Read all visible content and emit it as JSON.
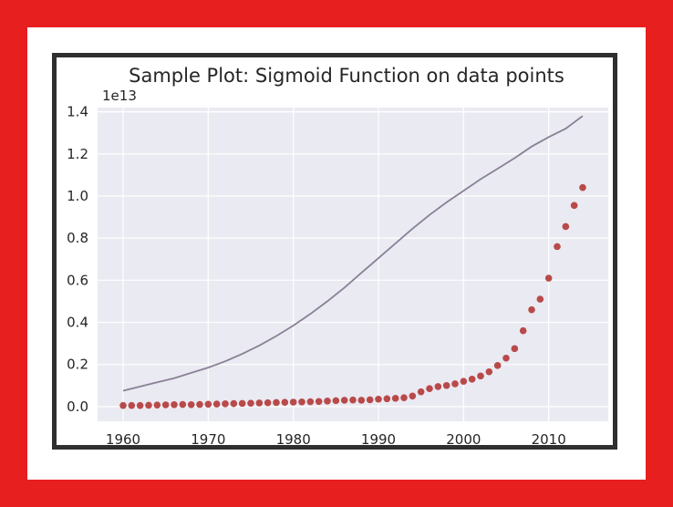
{
  "chart_data": {
    "type": "scatter",
    "title": "Sample Plot: Sigmoid Function on data points",
    "xlabel": "",
    "ylabel": "",
    "y_offset_label": "1e13",
    "xlim": [
      1957,
      2017
    ],
    "ylim": [
      -0.07,
      1.42
    ],
    "grid": true,
    "xticks": [
      1960,
      1970,
      1980,
      1990,
      2000,
      2010
    ],
    "xtick_labels": [
      "1960",
      "1970",
      "1980",
      "1990",
      "2000",
      "2010"
    ],
    "yticks": [
      0.0,
      0.2,
      0.4,
      0.6,
      0.8,
      1.0,
      1.2,
      1.4
    ],
    "ytick_labels": [
      "0.0",
      "0.2",
      "0.4",
      "0.6",
      "0.8",
      "1.0",
      "1.2",
      "1.4"
    ],
    "colors": {
      "points": "#b94a4a",
      "curve": "#8a8096",
      "plot_bg": "#eaeaf2",
      "grid": "#ffffff"
    },
    "series": [
      {
        "type": "scatter",
        "x": [
          1960,
          1961,
          1962,
          1963,
          1964,
          1965,
          1966,
          1967,
          1968,
          1969,
          1970,
          1971,
          1972,
          1973,
          1974,
          1975,
          1976,
          1977,
          1978,
          1979,
          1980,
          1981,
          1982,
          1983,
          1984,
          1985,
          1986,
          1987,
          1988,
          1989,
          1990,
          1991,
          1992,
          1993,
          1994,
          1995,
          1996,
          1997,
          1998,
          1999,
          2000,
          2001,
          2002,
          2003,
          2004,
          2005,
          2006,
          2007,
          2008,
          2009,
          2010,
          2011,
          2012,
          2013,
          2014
        ],
        "y": [
          0.005,
          0.005,
          0.005,
          0.006,
          0.007,
          0.008,
          0.009,
          0.01,
          0.009,
          0.01,
          0.011,
          0.012,
          0.013,
          0.014,
          0.015,
          0.016,
          0.017,
          0.018,
          0.019,
          0.02,
          0.021,
          0.022,
          0.023,
          0.024,
          0.026,
          0.028,
          0.03,
          0.031,
          0.03,
          0.032,
          0.035,
          0.037,
          0.039,
          0.042,
          0.05,
          0.07,
          0.085,
          0.095,
          0.1,
          0.108,
          0.12,
          0.13,
          0.145,
          0.165,
          0.195,
          0.23,
          0.275,
          0.36,
          0.46,
          0.51,
          0.61,
          0.76,
          0.855,
          0.955,
          1.04
        ]
      },
      {
        "type": "line",
        "x": [
          1960,
          1962,
          1964,
          1966,
          1968,
          1970,
          1972,
          1974,
          1976,
          1978,
          1980,
          1982,
          1984,
          1986,
          1988,
          1990,
          1992,
          1994,
          1996,
          1998,
          2000,
          2002,
          2004,
          2006,
          2008,
          2010,
          2012,
          2014
        ],
        "y": [
          0.075,
          0.095,
          0.115,
          0.135,
          0.16,
          0.185,
          0.215,
          0.25,
          0.29,
          0.335,
          0.385,
          0.44,
          0.5,
          0.565,
          0.635,
          0.705,
          0.775,
          0.845,
          0.91,
          0.97,
          1.025,
          1.08,
          1.13,
          1.18,
          1.235,
          1.28,
          1.32,
          1.38
        ]
      }
    ]
  }
}
